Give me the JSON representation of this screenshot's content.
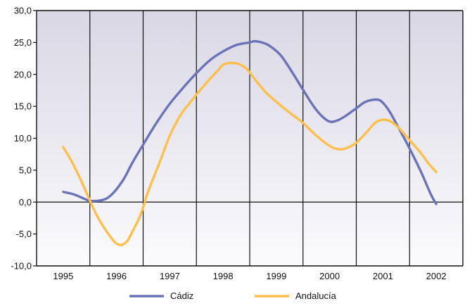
{
  "chart_data": {
    "type": "line",
    "title": "",
    "xlabel": "",
    "ylabel": "",
    "categories": [
      "1995",
      "1996",
      "1997",
      "1998",
      "1999",
      "2000",
      "2001",
      "2002"
    ],
    "y_ticks": [
      "30,0",
      "25,0",
      "20,0",
      "15,0",
      "10,0",
      "5,0",
      "0,0",
      "-5,0",
      "-10,0"
    ],
    "ylim": [
      -10,
      30
    ],
    "xlim": [
      1995,
      2002
    ],
    "grid": "vertical lines between years, horizontal zero line",
    "legend_position": "bottom",
    "series": [
      {
        "name": "Cádiz",
        "color": "#6b73b8",
        "points": [
          [
            1995.0,
            1.6
          ],
          [
            1995.2,
            1.2
          ],
          [
            1995.4,
            0.5
          ],
          [
            1995.5,
            0.2
          ],
          [
            1995.65,
            0.2
          ],
          [
            1995.8,
            0.5
          ],
          [
            1995.9,
            1.1
          ],
          [
            1996.0,
            2.0
          ],
          [
            1996.15,
            3.8
          ],
          [
            1996.3,
            6.2
          ],
          [
            1996.5,
            9.0
          ],
          [
            1996.75,
            12.4
          ],
          [
            1997.0,
            15.4
          ],
          [
            1997.25,
            17.9
          ],
          [
            1997.5,
            20.2
          ],
          [
            1997.75,
            22.2
          ],
          [
            1998.0,
            23.6
          ],
          [
            1998.25,
            24.6
          ],
          [
            1998.5,
            25.0
          ],
          [
            1998.6,
            25.2
          ],
          [
            1998.8,
            24.8
          ],
          [
            1998.95,
            24.0
          ],
          [
            1999.1,
            22.8
          ],
          [
            1999.3,
            20.3
          ],
          [
            1999.5,
            17.6
          ],
          [
            1999.7,
            15.0
          ],
          [
            1999.85,
            13.5
          ],
          [
            2000.0,
            12.6
          ],
          [
            2000.15,
            12.8
          ],
          [
            2000.3,
            13.5
          ],
          [
            2000.5,
            14.7
          ],
          [
            2000.65,
            15.6
          ],
          [
            2000.8,
            16.0
          ],
          [
            2000.95,
            15.9
          ],
          [
            2001.1,
            14.5
          ],
          [
            2001.25,
            12.3
          ],
          [
            2001.45,
            9.2
          ],
          [
            2001.7,
            5.0
          ],
          [
            2001.9,
            1.2
          ],
          [
            2002.0,
            -0.3
          ]
        ]
      },
      {
        "name": "Andalucía",
        "color": "#ffbf4d",
        "points": [
          [
            1995.0,
            8.6
          ],
          [
            1995.15,
            6.5
          ],
          [
            1995.3,
            4.0
          ],
          [
            1995.45,
            1.2
          ],
          [
            1995.6,
            -1.6
          ],
          [
            1995.75,
            -3.8
          ],
          [
            1995.9,
            -5.6
          ],
          [
            1996.0,
            -6.5
          ],
          [
            1996.1,
            -6.7
          ],
          [
            1996.2,
            -6.1
          ],
          [
            1996.3,
            -4.6
          ],
          [
            1996.45,
            -2.0
          ],
          [
            1996.6,
            1.8
          ],
          [
            1996.8,
            6.0
          ],
          [
            1997.0,
            10.4
          ],
          [
            1997.2,
            13.6
          ],
          [
            1997.45,
            16.3
          ],
          [
            1997.7,
            18.8
          ],
          [
            1997.9,
            20.6
          ],
          [
            1998.0,
            21.5
          ],
          [
            1998.15,
            21.8
          ],
          [
            1998.3,
            21.6
          ],
          [
            1998.45,
            20.8
          ],
          [
            1998.6,
            19.2
          ],
          [
            1998.8,
            17.2
          ],
          [
            1999.0,
            15.7
          ],
          [
            1999.25,
            14.0
          ],
          [
            1999.5,
            12.4
          ],
          [
            1999.75,
            10.4
          ],
          [
            2000.0,
            8.8
          ],
          [
            2000.15,
            8.3
          ],
          [
            2000.3,
            8.4
          ],
          [
            2000.5,
            9.3
          ],
          [
            2000.7,
            11.0
          ],
          [
            2000.85,
            12.4
          ],
          [
            2001.0,
            12.9
          ],
          [
            2001.15,
            12.6
          ],
          [
            2001.3,
            11.6
          ],
          [
            2001.5,
            9.7
          ],
          [
            2001.7,
            7.8
          ],
          [
            2001.85,
            6.1
          ],
          [
            2002.0,
            4.7
          ]
        ]
      }
    ]
  },
  "colors": {
    "plot_background_top": "#d9d7e4",
    "plot_background_bottom": "#fbfbfd",
    "axis": "#111111",
    "gridline": "#111111"
  }
}
